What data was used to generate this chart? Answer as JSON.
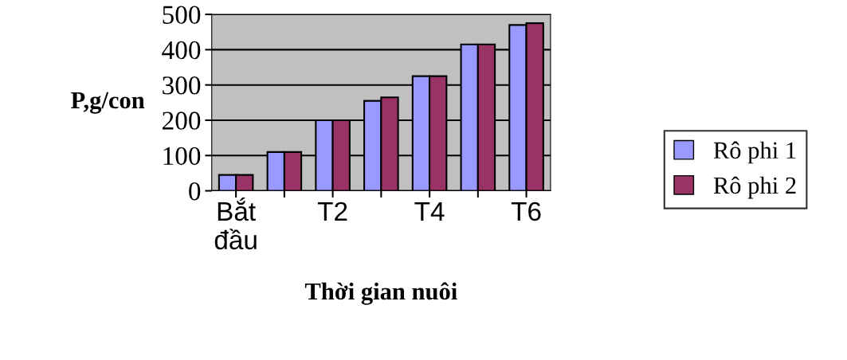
{
  "chart_data": {
    "type": "bar",
    "xlabel": "Thời gian nuôi",
    "ylabel": "P,g/con",
    "categories": [
      "Bắt\nđầu",
      null,
      "T2",
      null,
      "T4",
      null,
      "T6"
    ],
    "series": [
      {
        "name": "Rô phi 1",
        "color": "#9999ff",
        "values": [
          45,
          110,
          200,
          255,
          325,
          415,
          470
        ]
      },
      {
        "name": "Rô phi 2",
        "color": "#993366",
        "values": [
          45,
          110,
          200,
          265,
          325,
          415,
          475
        ]
      }
    ],
    "ylim": [
      0,
      500
    ],
    "yticks": [
      0,
      100,
      200,
      300,
      400,
      500
    ],
    "grid": "y",
    "legend": "right"
  }
}
